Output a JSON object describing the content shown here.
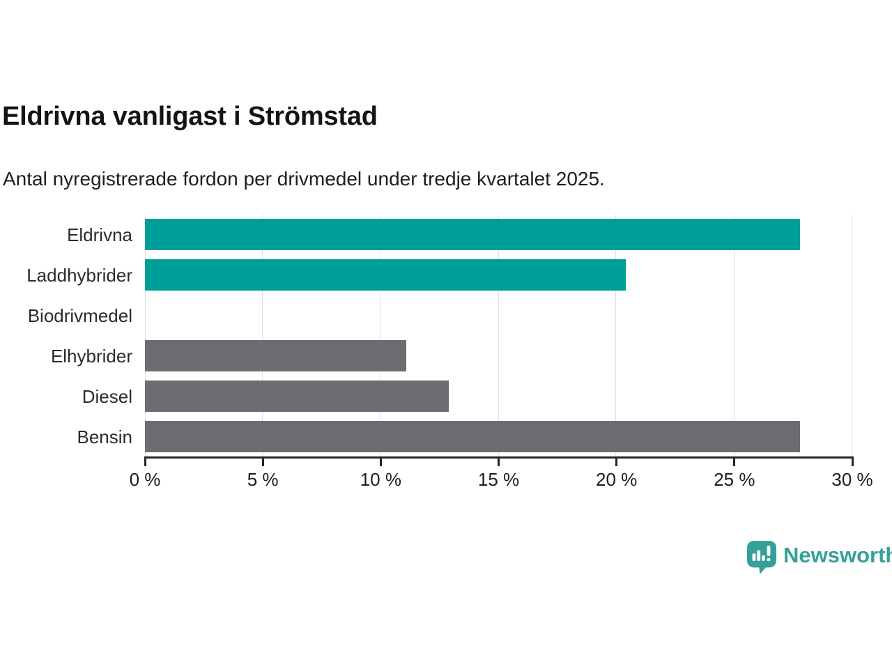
{
  "header": {
    "title": "Eldrivna vanligast i Strömstad",
    "subtitle": "Antal nyregistrerade fordon per drivmedel under tredje kvartalet 2025."
  },
  "chart_data": {
    "type": "bar",
    "orientation": "horizontal",
    "title": "Eldrivna vanligast i Strömstad",
    "subtitle": "Antal nyregistrerade fordon per drivmedel under tredje kvartalet 2025.",
    "categories": [
      "Eldrivna",
      "Laddhybrider",
      "Biodrivmedel",
      "Elhybrider",
      "Diesel",
      "Bensin"
    ],
    "values": [
      27.8,
      20.4,
      0,
      11.1,
      12.9,
      27.8
    ],
    "bar_colors": [
      "#009e98",
      "#009e98",
      "#6c6c71",
      "#6c6c71",
      "#6c6c71",
      "#6c6c71"
    ],
    "xlabel": "",
    "ylabel": "",
    "xlim": [
      0,
      30
    ],
    "x_ticks": [
      0,
      5,
      10,
      15,
      20,
      25,
      30
    ],
    "x_tick_labels": [
      "0 %",
      "5 %",
      "10 %",
      "15 %",
      "20 %",
      "25 %",
      "30 %"
    ],
    "grid": true,
    "legend": false
  },
  "colors": {
    "accent_teal": "#009e98",
    "bar_gray": "#6c6c71",
    "gridline": "#e0e0e0",
    "axis": "#262626",
    "brand_teal": "#35a099"
  },
  "branding": {
    "logo_text": "Newsworthy",
    "logo_icon": "newsworthy-speech-bubble-bar-chart-icon"
  }
}
